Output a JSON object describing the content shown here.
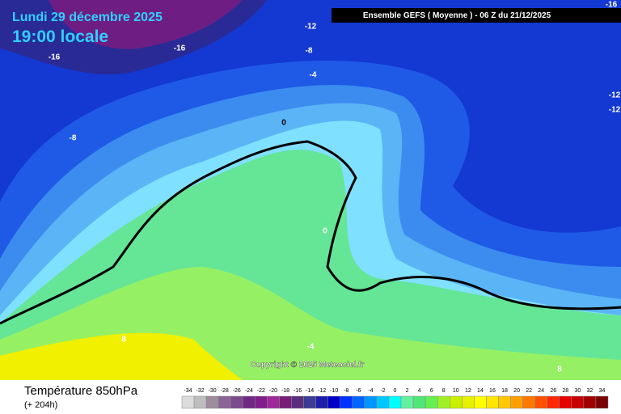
{
  "header": {
    "date": "Lundi 29 décembre 2025",
    "time": "19:00 locale",
    "run": "Ensemble GEFS  ( Moyenne )  -  06 Z du 21/12/2025"
  },
  "contour_labels": [
    "-16",
    "-16",
    "-12",
    "-8",
    "-4",
    "0",
    "-8",
    "0",
    "-4",
    "8",
    "8",
    "-16",
    "-12",
    "-12"
  ],
  "copyright": "Copyright © 2025 Meteociel.fr",
  "footer": {
    "title": "Température 850hPa",
    "subtitle": "(+ 204h)"
  },
  "scale": {
    "labels": [
      -34,
      -32,
      -30,
      -28,
      -26,
      -24,
      -22,
      -20,
      -18,
      -16,
      -14,
      -12,
      -10,
      -8,
      -6,
      -4,
      -2,
      0,
      2,
      4,
      6,
      8,
      10,
      12,
      14,
      16,
      18,
      20,
      22,
      24,
      26,
      28,
      30,
      32,
      34
    ],
    "colors": [
      "#dcdcdc",
      "#bebebe",
      "#9c8c9c",
      "#8c6496",
      "#7d4a8c",
      "#6e2a82",
      "#821e8c",
      "#a0289b",
      "#781e78",
      "#5a2d7d",
      "#3c3c96",
      "#1e1eaa",
      "#0000c8",
      "#0032ff",
      "#0064ff",
      "#0096ff",
      "#00c8ff",
      "#00ffff",
      "#64f0a0",
      "#50e678",
      "#64f050",
      "#a0f028",
      "#c8f000",
      "#e6f000",
      "#ffff00",
      "#ffe600",
      "#ffc800",
      "#ffa000",
      "#ff7800",
      "#ff5000",
      "#ff2800",
      "#e60000",
      "#c80000",
      "#a00000",
      "#780000"
    ]
  }
}
